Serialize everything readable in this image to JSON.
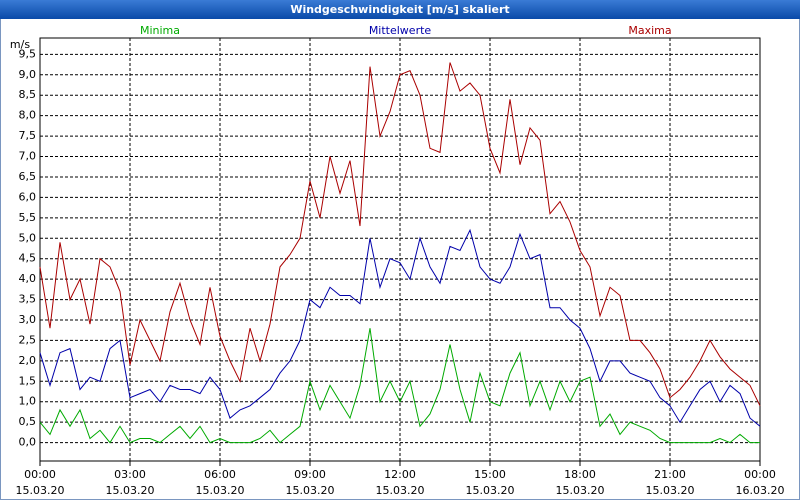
{
  "chart_data": {
    "type": "line",
    "title": "Windgeschwindigkeit [m/s] skaliert",
    "y_unit": "m/s",
    "x": [
      0,
      20,
      40,
      60,
      80,
      100,
      120,
      140,
      160,
      180,
      200,
      220,
      240,
      260,
      280,
      300,
      320,
      340,
      360,
      380,
      400,
      420,
      440,
      460,
      480,
      500,
      520,
      540,
      560,
      580,
      600,
      620,
      640,
      660,
      680,
      700,
      720,
      740,
      760,
      780,
      800,
      820,
      840,
      860,
      880,
      900,
      920,
      940,
      960,
      980,
      1000,
      1020,
      1040,
      1060,
      1080,
      1100,
      1120,
      1140,
      1160,
      1180,
      1200,
      1220,
      1240,
      1260,
      1280,
      1300,
      1320,
      1340,
      1360,
      1380,
      1400,
      1420,
      1440
    ],
    "series": [
      {
        "name": "Minima",
        "color": "#00aa00",
        "values": [
          0.5,
          0.2,
          0.8,
          0.4,
          0.8,
          0.1,
          0.3,
          0.0,
          0.4,
          0.0,
          0.1,
          0.1,
          0.0,
          0.2,
          0.4,
          0.1,
          0.4,
          0.0,
          0.1,
          0.0,
          0.0,
          0.0,
          0.1,
          0.3,
          0.0,
          0.2,
          0.4,
          1.5,
          0.8,
          1.4,
          1.0,
          0.6,
          1.4,
          2.8,
          1.0,
          1.5,
          1.0,
          1.5,
          0.4,
          0.7,
          1.3,
          2.4,
          1.3,
          0.5,
          1.7,
          1.0,
          0.9,
          1.7,
          2.2,
          0.9,
          1.5,
          0.8,
          1.5,
          1.0,
          1.5,
          1.6,
          0.4,
          0.7,
          0.2,
          0.5,
          0.4,
          0.3,
          0.1,
          0.0,
          0.0,
          0.0,
          0.0,
          0.0,
          0.1,
          0.0,
          0.2,
          0.0,
          0.0
        ]
      },
      {
        "name": "Mittelwerte",
        "color": "#0000aa",
        "values": [
          2.2,
          1.4,
          2.2,
          2.3,
          1.3,
          1.6,
          1.5,
          2.3,
          2.5,
          1.1,
          1.2,
          1.3,
          1.0,
          1.4,
          1.3,
          1.3,
          1.2,
          1.6,
          1.3,
          0.6,
          0.8,
          0.9,
          1.1,
          1.3,
          1.7,
          2.0,
          2.5,
          3.5,
          3.3,
          3.8,
          3.6,
          3.6,
          3.4,
          5.0,
          3.8,
          4.5,
          4.4,
          4.0,
          5.0,
          4.3,
          3.9,
          4.8,
          4.7,
          5.2,
          4.3,
          4.0,
          3.9,
          4.3,
          5.1,
          4.5,
          4.6,
          3.3,
          3.3,
          3.0,
          2.8,
          2.3,
          1.5,
          2.0,
          2.0,
          1.7,
          1.6,
          1.5,
          1.1,
          0.9,
          0.5,
          0.9,
          1.3,
          1.5,
          1.0,
          1.4,
          1.2,
          0.6,
          0.4
        ]
      },
      {
        "name": "Maxima",
        "color": "#aa0000",
        "values": [
          4.3,
          2.8,
          4.9,
          3.5,
          4.0,
          2.9,
          4.5,
          4.3,
          3.7,
          1.9,
          3.0,
          2.5,
          2.0,
          3.2,
          3.9,
          3.0,
          2.4,
          3.8,
          2.6,
          2.0,
          1.5,
          2.8,
          2.0,
          2.9,
          4.3,
          4.6,
          5.0,
          6.4,
          5.5,
          7.0,
          6.1,
          6.9,
          5.3,
          9.2,
          7.5,
          8.1,
          9.0,
          9.1,
          8.5,
          7.2,
          7.1,
          9.3,
          8.6,
          8.8,
          8.5,
          7.2,
          6.6,
          8.4,
          6.8,
          7.7,
          7.4,
          5.6,
          5.9,
          5.4,
          4.7,
          4.3,
          3.1,
          3.8,
          3.6,
          2.5,
          2.5,
          2.2,
          1.8,
          1.1,
          1.3,
          1.6,
          2.0,
          2.5,
          2.1,
          1.8,
          1.6,
          1.4,
          0.9
        ]
      }
    ],
    "xlim": [
      0,
      1440
    ],
    "xticks": [
      {
        "value": 0,
        "label": "00:00"
      },
      {
        "value": 180,
        "label": "03:00"
      },
      {
        "value": 360,
        "label": "06:00"
      },
      {
        "value": 540,
        "label": "09:00"
      },
      {
        "value": 720,
        "label": "12:00"
      },
      {
        "value": 900,
        "label": "15:00"
      },
      {
        "value": 1080,
        "label": "18:00"
      },
      {
        "value": 1260,
        "label": "21:00"
      },
      {
        "value": 1440,
        "label": "00:00"
      }
    ],
    "xtick_dates": [
      "15.03.20",
      "15.03.20",
      "15.03.20",
      "15.03.20",
      "15.03.20",
      "15.03.20",
      "15.03.20",
      "15.03.20",
      "16.03.20"
    ],
    "ylim": [
      -0.45,
      9.9
    ],
    "yticks": [
      {
        "value": 0,
        "label": "0,0"
      },
      {
        "value": 0.5,
        "label": "0,5"
      },
      {
        "value": 1,
        "label": "1,0"
      },
      {
        "value": 1.5,
        "label": "1,5"
      },
      {
        "value": 2,
        "label": "2,0"
      },
      {
        "value": 2.5,
        "label": "2,5"
      },
      {
        "value": 3,
        "label": "3,0"
      },
      {
        "value": 3.5,
        "label": "3,5"
      },
      {
        "value": 4,
        "label": "4,0"
      },
      {
        "value": 4.5,
        "label": "4,5"
      },
      {
        "value": 5,
        "label": "5,0"
      },
      {
        "value": 5.5,
        "label": "5,5"
      },
      {
        "value": 6,
        "label": "6,0"
      },
      {
        "value": 6.5,
        "label": "6,5"
      },
      {
        "value": 7,
        "label": "7,0"
      },
      {
        "value": 7.5,
        "label": "7,5"
      },
      {
        "value": 8,
        "label": "8,0"
      },
      {
        "value": 8.5,
        "label": "8,5"
      },
      {
        "value": 9,
        "label": "9,0"
      },
      {
        "value": 9.5,
        "label": "9,5"
      }
    ],
    "grid": true
  }
}
